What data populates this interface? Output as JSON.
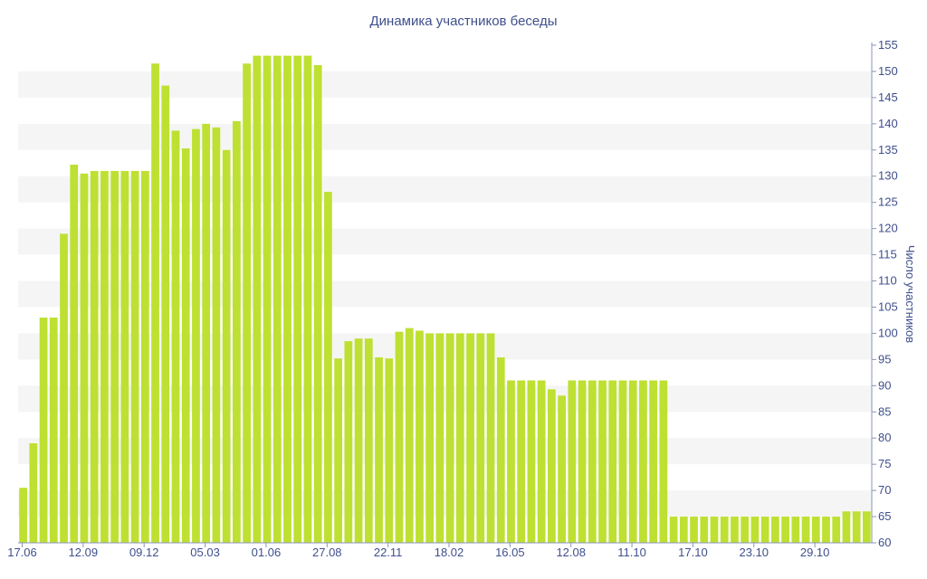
{
  "chart_data": {
    "type": "bar",
    "title": "Динамика участников беседы",
    "xlabel": "",
    "ylabel": "Число участников",
    "ylim": [
      60,
      155
    ],
    "y_ticks": [
      60,
      65,
      70,
      75,
      80,
      85,
      90,
      95,
      100,
      105,
      110,
      115,
      120,
      125,
      130,
      135,
      140,
      145,
      150,
      155
    ],
    "x_tick_labels": [
      {
        "index": 0,
        "label": "17.06"
      },
      {
        "index": 6,
        "label": "12.09"
      },
      {
        "index": 12,
        "label": "09.12"
      },
      {
        "index": 18,
        "label": "05.03"
      },
      {
        "index": 24,
        "label": "01.06"
      },
      {
        "index": 30,
        "label": "27.08"
      },
      {
        "index": 36,
        "label": "22.11"
      },
      {
        "index": 42,
        "label": "18.02"
      },
      {
        "index": 48,
        "label": "16.05"
      },
      {
        "index": 54,
        "label": "12.08"
      },
      {
        "index": 60,
        "label": "11.10"
      },
      {
        "index": 66,
        "label": "17.10"
      },
      {
        "index": 72,
        "label": "23.10"
      },
      {
        "index": 78,
        "label": "29.10"
      }
    ],
    "grid": "horizontal bands",
    "bar_color": "#bee032",
    "values": [
      70.5,
      79,
      103,
      103,
      119,
      132.2,
      130.5,
      131,
      131,
      131,
      131,
      131,
      131,
      151.5,
      147.3,
      138.7,
      135.3,
      139,
      140,
      139.3,
      135,
      140.5,
      151.5,
      153,
      153,
      153,
      153,
      153,
      153,
      151.2,
      127,
      95.2,
      98.5,
      99,
      99,
      95.4,
      95.2,
      100.3,
      101,
      100.5,
      100,
      100,
      100,
      100,
      100,
      100,
      100,
      95.4,
      91,
      91,
      91,
      91,
      89.3,
      88.1,
      91,
      91,
      91,
      91,
      91,
      91,
      91,
      91,
      91,
      91,
      65,
      65,
      65,
      65,
      65,
      65,
      65,
      65,
      65,
      65,
      65,
      65,
      65,
      65,
      65,
      65,
      65,
      66,
      66,
      66
    ]
  }
}
